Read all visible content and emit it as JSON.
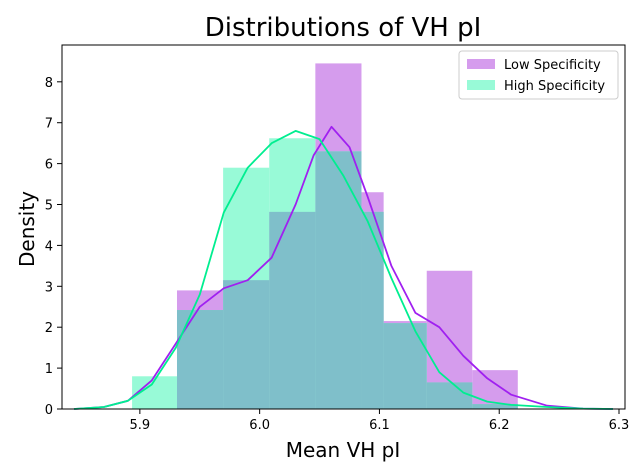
{
  "chart_data": {
    "type": "histogram",
    "title": "Distributions of VH pI",
    "xlabel": "Mean VH pI",
    "ylabel": "Density",
    "xlim": [
      5.835,
      6.305
    ],
    "ylim": [
      0,
      8.9
    ],
    "xticks": [
      "5.9",
      "6.0",
      "6.1",
      "6.2",
      "6.3"
    ],
    "yticks": [
      "0",
      "1",
      "2",
      "3",
      "4",
      "5",
      "6",
      "7",
      "8"
    ],
    "xtick_values": [
      5.9,
      6.0,
      6.1,
      6.2,
      6.3
    ],
    "ytick_values": [
      0,
      1,
      2,
      3,
      4,
      5,
      6,
      7,
      8
    ],
    "legend_position": "top-right",
    "grid": false,
    "series": [
      {
        "name": "Low Specificity",
        "color": "#a020f0",
        "bins": [
          {
            "x0": 5.931,
            "x1": 5.9695,
            "density": 2.9
          },
          {
            "x0": 5.9695,
            "x1": 6.008,
            "density": 3.15
          },
          {
            "x0": 6.008,
            "x1": 6.0465,
            "density": 4.82
          },
          {
            "x0": 6.0465,
            "x1": 6.085,
            "density": 8.45
          },
          {
            "x0": 6.085,
            "x1": 6.1035,
            "density": 5.3
          },
          {
            "x0": 6.1035,
            "x1": 6.1395,
            "density": 2.15
          },
          {
            "x0": 6.1395,
            "x1": 6.1775,
            "density": 3.38
          },
          {
            "x0": 6.1775,
            "x1": 6.2155,
            "density": 0.95
          }
        ],
        "kde": {
          "x": [
            5.845,
            5.87,
            5.89,
            5.91,
            5.93,
            5.95,
            5.97,
            5.99,
            6.01,
            6.03,
            6.045,
            6.06,
            6.075,
            6.09,
            6.11,
            6.13,
            6.15,
            6.17,
            6.19,
            6.21,
            6.24,
            6.27,
            6.295
          ],
          "y": [
            0.0,
            0.05,
            0.2,
            0.7,
            1.6,
            2.5,
            2.95,
            3.15,
            3.7,
            5.0,
            6.2,
            6.9,
            6.4,
            5.2,
            3.5,
            2.35,
            2.0,
            1.3,
            0.75,
            0.35,
            0.08,
            0.01,
            0.0
          ]
        }
      },
      {
        "name": "High Specificity",
        "color": "#00ee90",
        "bins": [
          {
            "x0": 5.8935,
            "x1": 5.931,
            "density": 0.8
          },
          {
            "x0": 5.931,
            "x1": 5.9695,
            "density": 2.42
          },
          {
            "x0": 5.9695,
            "x1": 6.008,
            "density": 5.9
          },
          {
            "x0": 6.008,
            "x1": 6.0465,
            "density": 6.62
          },
          {
            "x0": 6.0465,
            "x1": 6.085,
            "density": 6.3
          },
          {
            "x0": 6.085,
            "x1": 6.1035,
            "density": 4.82
          },
          {
            "x0": 6.1035,
            "x1": 6.1395,
            "density": 2.1
          },
          {
            "x0": 6.1395,
            "x1": 6.1775,
            "density": 0.65
          },
          {
            "x0": 6.1775,
            "x1": 6.2155,
            "density": 0.12
          }
        ],
        "kde": {
          "x": [
            5.845,
            5.87,
            5.89,
            5.91,
            5.93,
            5.95,
            5.97,
            5.99,
            6.01,
            6.03,
            6.05,
            6.07,
            6.09,
            6.11,
            6.13,
            6.15,
            6.17,
            6.19,
            6.21,
            6.24,
            6.27,
            6.295
          ],
          "y": [
            0.0,
            0.05,
            0.2,
            0.6,
            1.5,
            2.8,
            4.8,
            5.9,
            6.5,
            6.8,
            6.6,
            5.7,
            4.6,
            3.2,
            1.9,
            0.9,
            0.4,
            0.18,
            0.1,
            0.05,
            0.01,
            0.0
          ]
        }
      }
    ],
    "overlap_color": "#7fbfca"
  }
}
